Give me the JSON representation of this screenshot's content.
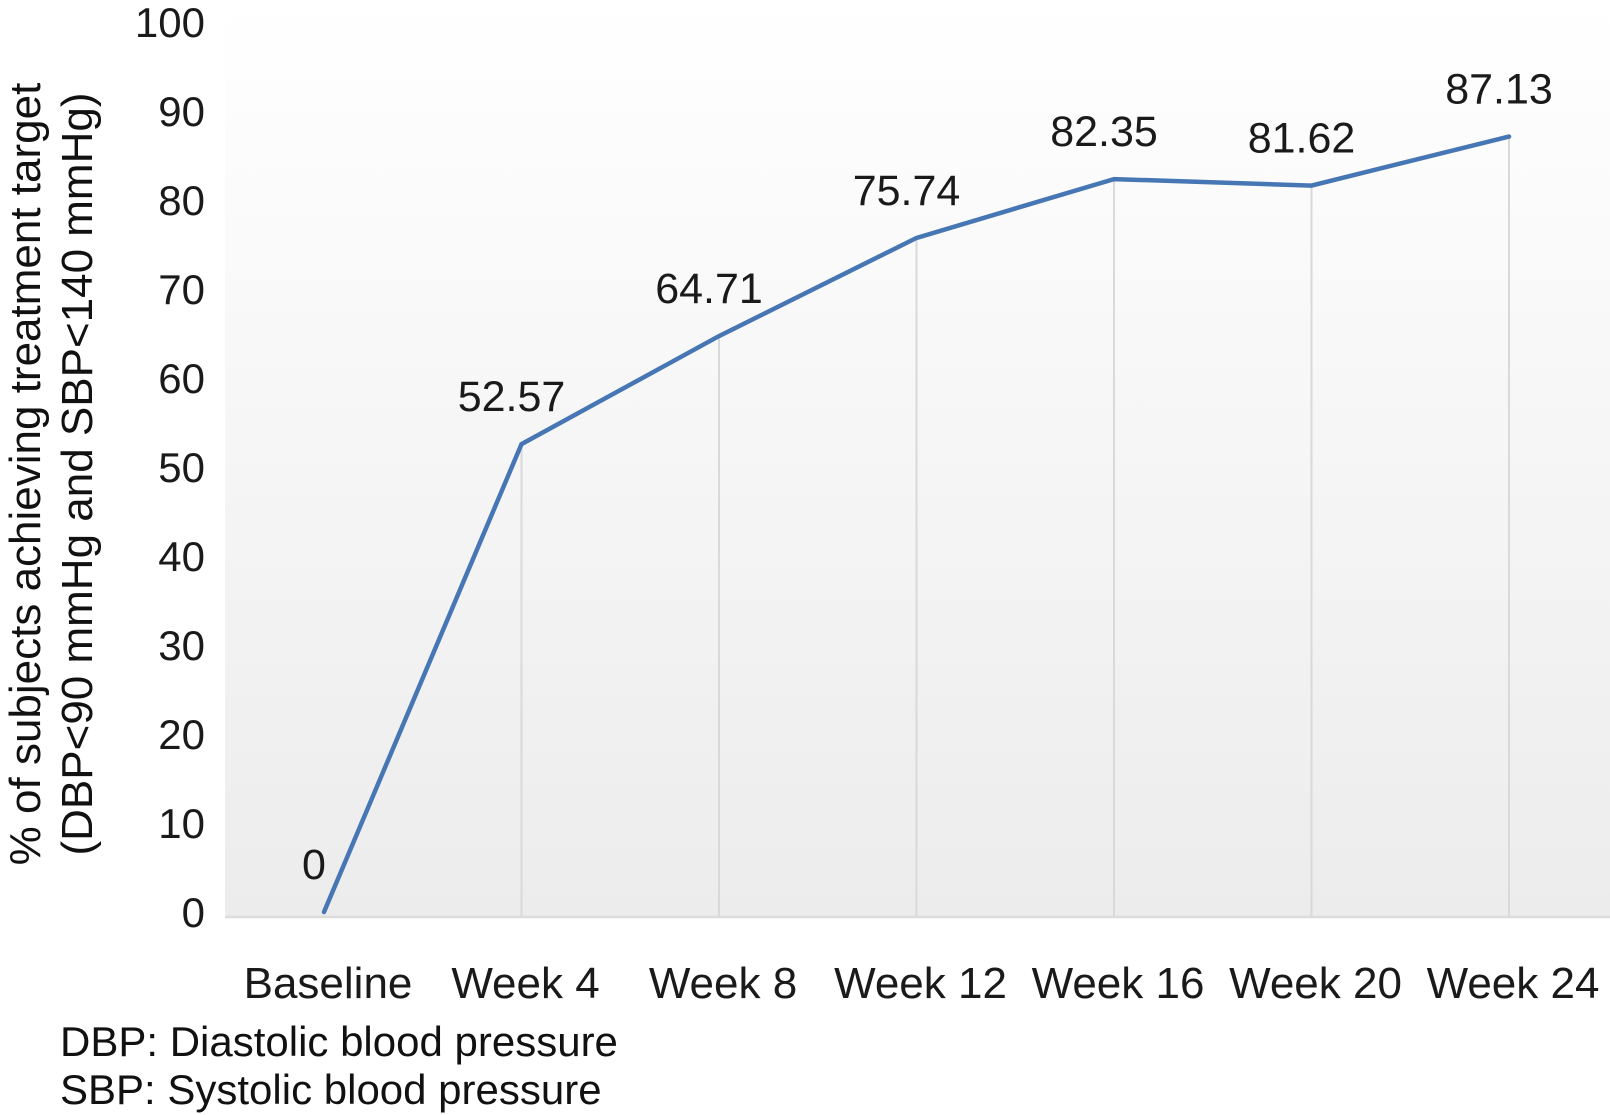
{
  "figure": {
    "footnotes": {
      "line1": "DBP: Diastolic blood pressure",
      "line2": "SBP: Systolic blood pressure"
    }
  },
  "chart_data": {
    "type": "line",
    "title": "",
    "xlabel": "",
    "ylabel_line1": "% of subjects achieving treatment target",
    "ylabel_line2": "(DBP<90 mmHg and SBP<140 mmHg)",
    "categories": [
      "Baseline",
      "Week 4",
      "Week 8",
      "Week 12",
      "Week 16",
      "Week 20",
      "Week 24"
    ],
    "series": [
      {
        "name": "% of subjects achieving treatment target",
        "values": [
          0,
          52.57,
          64.71,
          75.74,
          82.35,
          81.62,
          87.13
        ]
      }
    ],
    "data_labels": [
      "0",
      "52.57",
      "64.71",
      "75.74",
      "82.35",
      "81.62",
      "87.13"
    ],
    "yticks": [
      0,
      10,
      20,
      30,
      40,
      50,
      60,
      70,
      80,
      90,
      100
    ],
    "ylim": [
      0,
      100
    ],
    "grid": false,
    "legend_position": "none",
    "colors": {
      "line": "#4776b4",
      "drop_line": "#d9d9d9",
      "axis_line": "#dcdcdc",
      "plot_bg_top": "#ffffff",
      "plot_bg_bottom": "#ececec",
      "text": "#1a1a1a"
    }
  }
}
